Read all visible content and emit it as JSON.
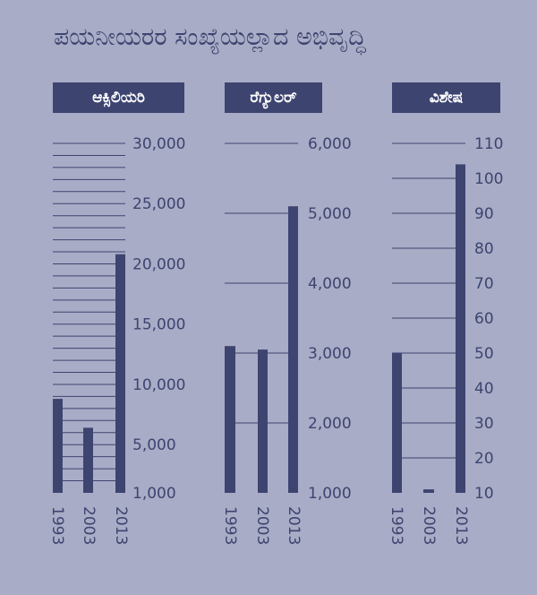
{
  "title": "ಪಯನೀಯರರ ಸಂಖ್ಯೆಯಲ್ಲಾದ ಅಭಿವೃದ್ಧಿ",
  "colors": {
    "background": "#a9acc6",
    "bar": "#3d4470",
    "grid": "#3d4470",
    "text": "#3d4470"
  },
  "chart_data": [
    {
      "type": "bar",
      "label": "ಆಕ್ಸಿಲಿಯರಿ",
      "categories": [
        "1993",
        "2003",
        "2013"
      ],
      "values": [
        8800,
        6400,
        20800
      ],
      "ylim": [
        1000,
        30000
      ],
      "yticks": [
        "30,000",
        "25,000",
        "20,000",
        "15,000",
        "10,000",
        "5,000",
        "1,000"
      ],
      "ytick_values": [
        30000,
        25000,
        20000,
        15000,
        10000,
        5000,
        1000
      ],
      "grid_step": 1000
    },
    {
      "type": "bar",
      "label": "ರೆಗ್ಯುಲರ್",
      "categories": [
        "1993",
        "2003",
        "2013"
      ],
      "values": [
        3100,
        3050,
        5100
      ],
      "ylim": [
        1000,
        6000
      ],
      "yticks": [
        "6,000",
        "5,000",
        "4,000",
        "3,000",
        "2,000",
        "1,000"
      ],
      "ytick_values": [
        6000,
        5000,
        4000,
        3000,
        2000,
        1000
      ],
      "grid_step": 1000
    },
    {
      "type": "bar",
      "label": "ವಿಶೇಷ",
      "categories": [
        "1993",
        "2003",
        "2013"
      ],
      "values": [
        50,
        11,
        104
      ],
      "ylim": [
        10,
        110
      ],
      "yticks": [
        "110",
        "100",
        "90",
        "80",
        "70",
        "60",
        "50",
        "40",
        "30",
        "20",
        "10"
      ],
      "ytick_values": [
        110,
        100,
        90,
        80,
        70,
        60,
        50,
        40,
        30,
        20,
        10
      ],
      "grid_step": 10
    }
  ]
}
